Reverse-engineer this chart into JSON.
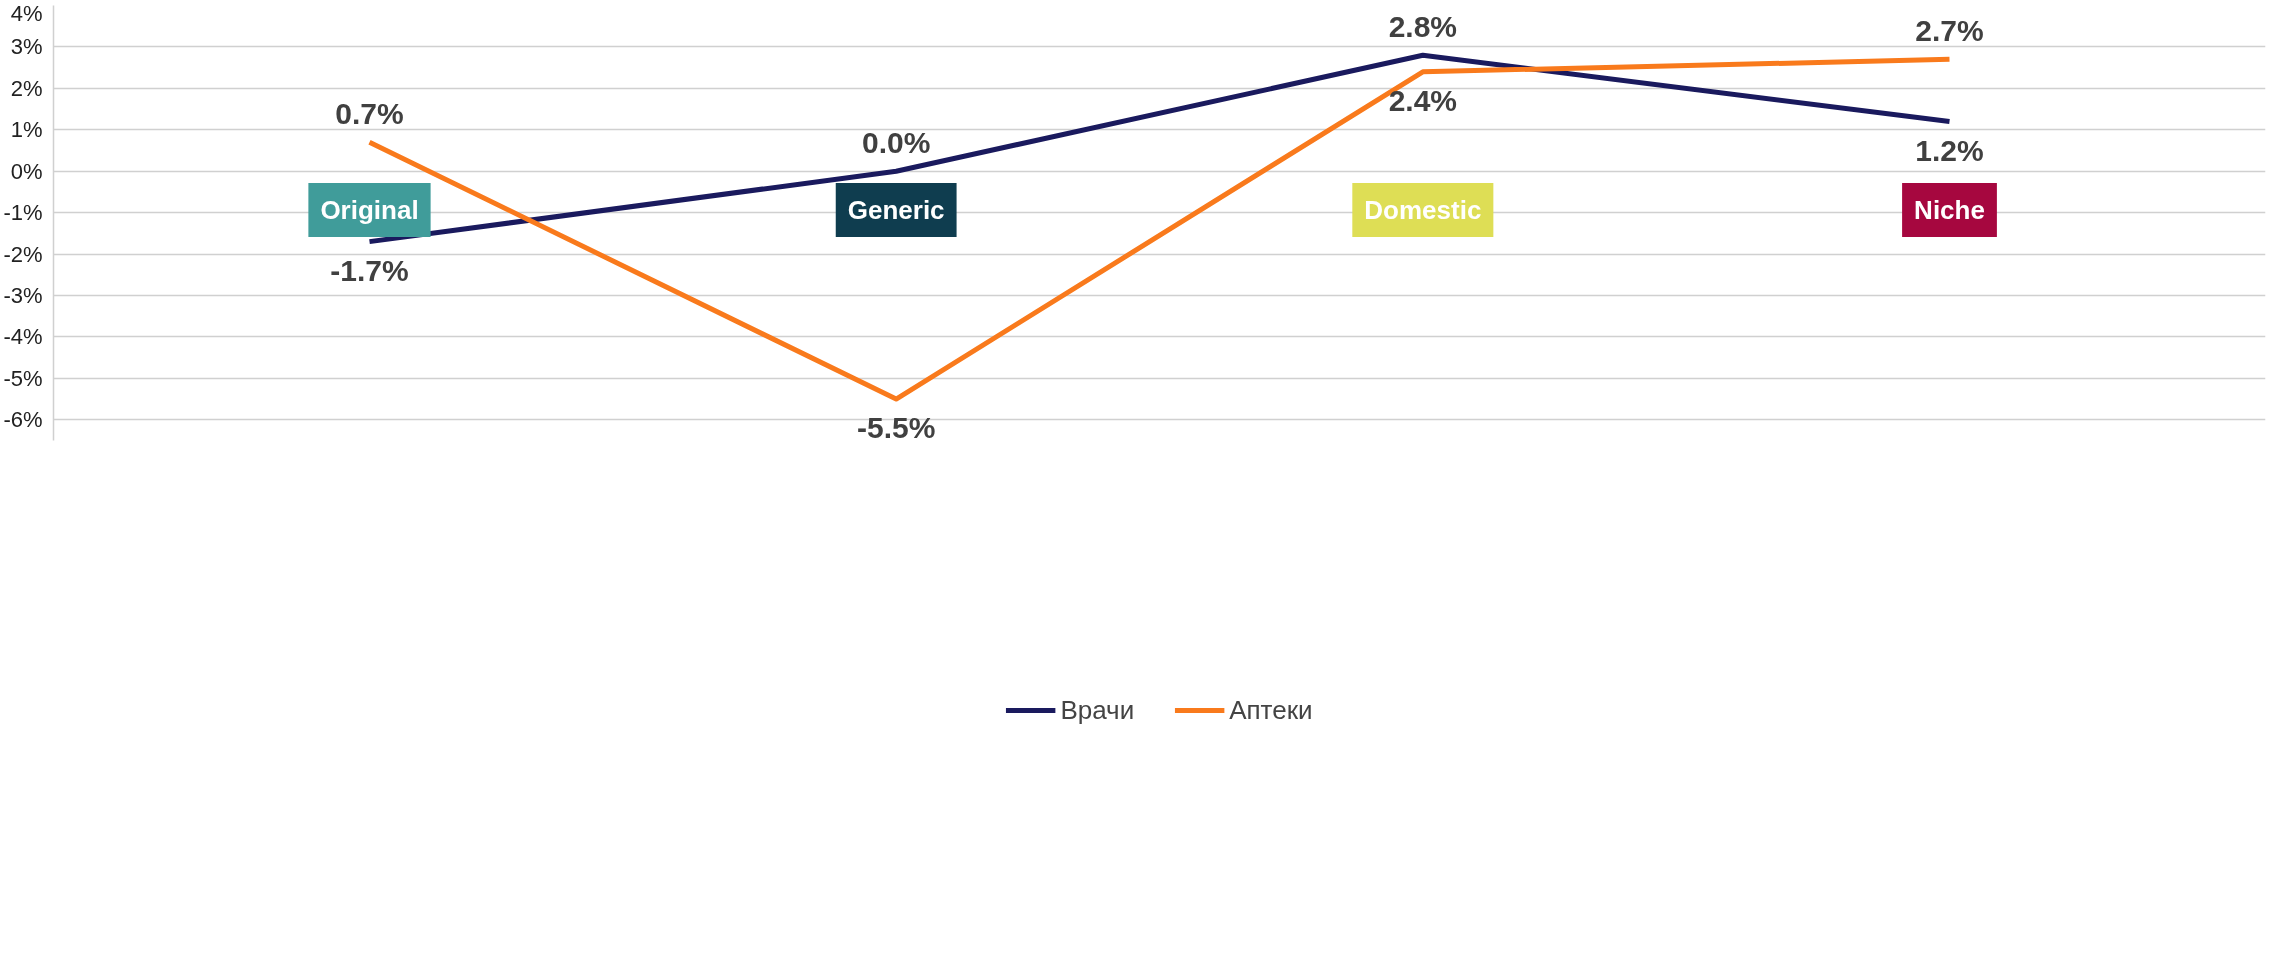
{
  "chart_data": {
    "type": "line",
    "categories": [
      "Original",
      "Generic",
      "Domestic",
      "Niche"
    ],
    "colors": [
      "#409c9a",
      "#0f3d4f",
      "#dede55",
      "#a6073f"
    ],
    "series": [
      {
        "name": "Врачи",
        "color": "#1a1a5e",
        "values": [
          -1.7,
          0.0,
          2.8,
          1.2
        ],
        "value_labels": [
          "-1.7%",
          "0.0%",
          "2.8%",
          "1.2%"
        ]
      },
      {
        "name": "Аптеки",
        "color": "#f97a1c",
        "values": [
          0.7,
          -5.5,
          2.4,
          2.7
        ],
        "value_labels": [
          "0.7%",
          "-5.5%",
          "2.4%",
          "2.7%"
        ]
      }
    ],
    "ylim": [
      -6.5,
      4
    ],
    "yticks": [
      {
        "value": -6,
        "label": "-6%"
      },
      {
        "value": -5,
        "label": "-5%"
      },
      {
        "value": -4,
        "label": "-4%"
      },
      {
        "value": -3,
        "label": "-3%"
      },
      {
        "value": -2,
        "label": "-2%"
      },
      {
        "value": -1,
        "label": "-1%"
      },
      {
        "value": 0,
        "label": "0%"
      },
      {
        "value": 1,
        "label": "1%"
      },
      {
        "value": 2,
        "label": "2%"
      },
      {
        "value": 3,
        "label": "3%"
      },
      {
        "value": 4,
        "label": "4%"
      }
    ],
    "grid": "y",
    "legend": "bottom",
    "marker": "none",
    "line_style": "solid"
  }
}
